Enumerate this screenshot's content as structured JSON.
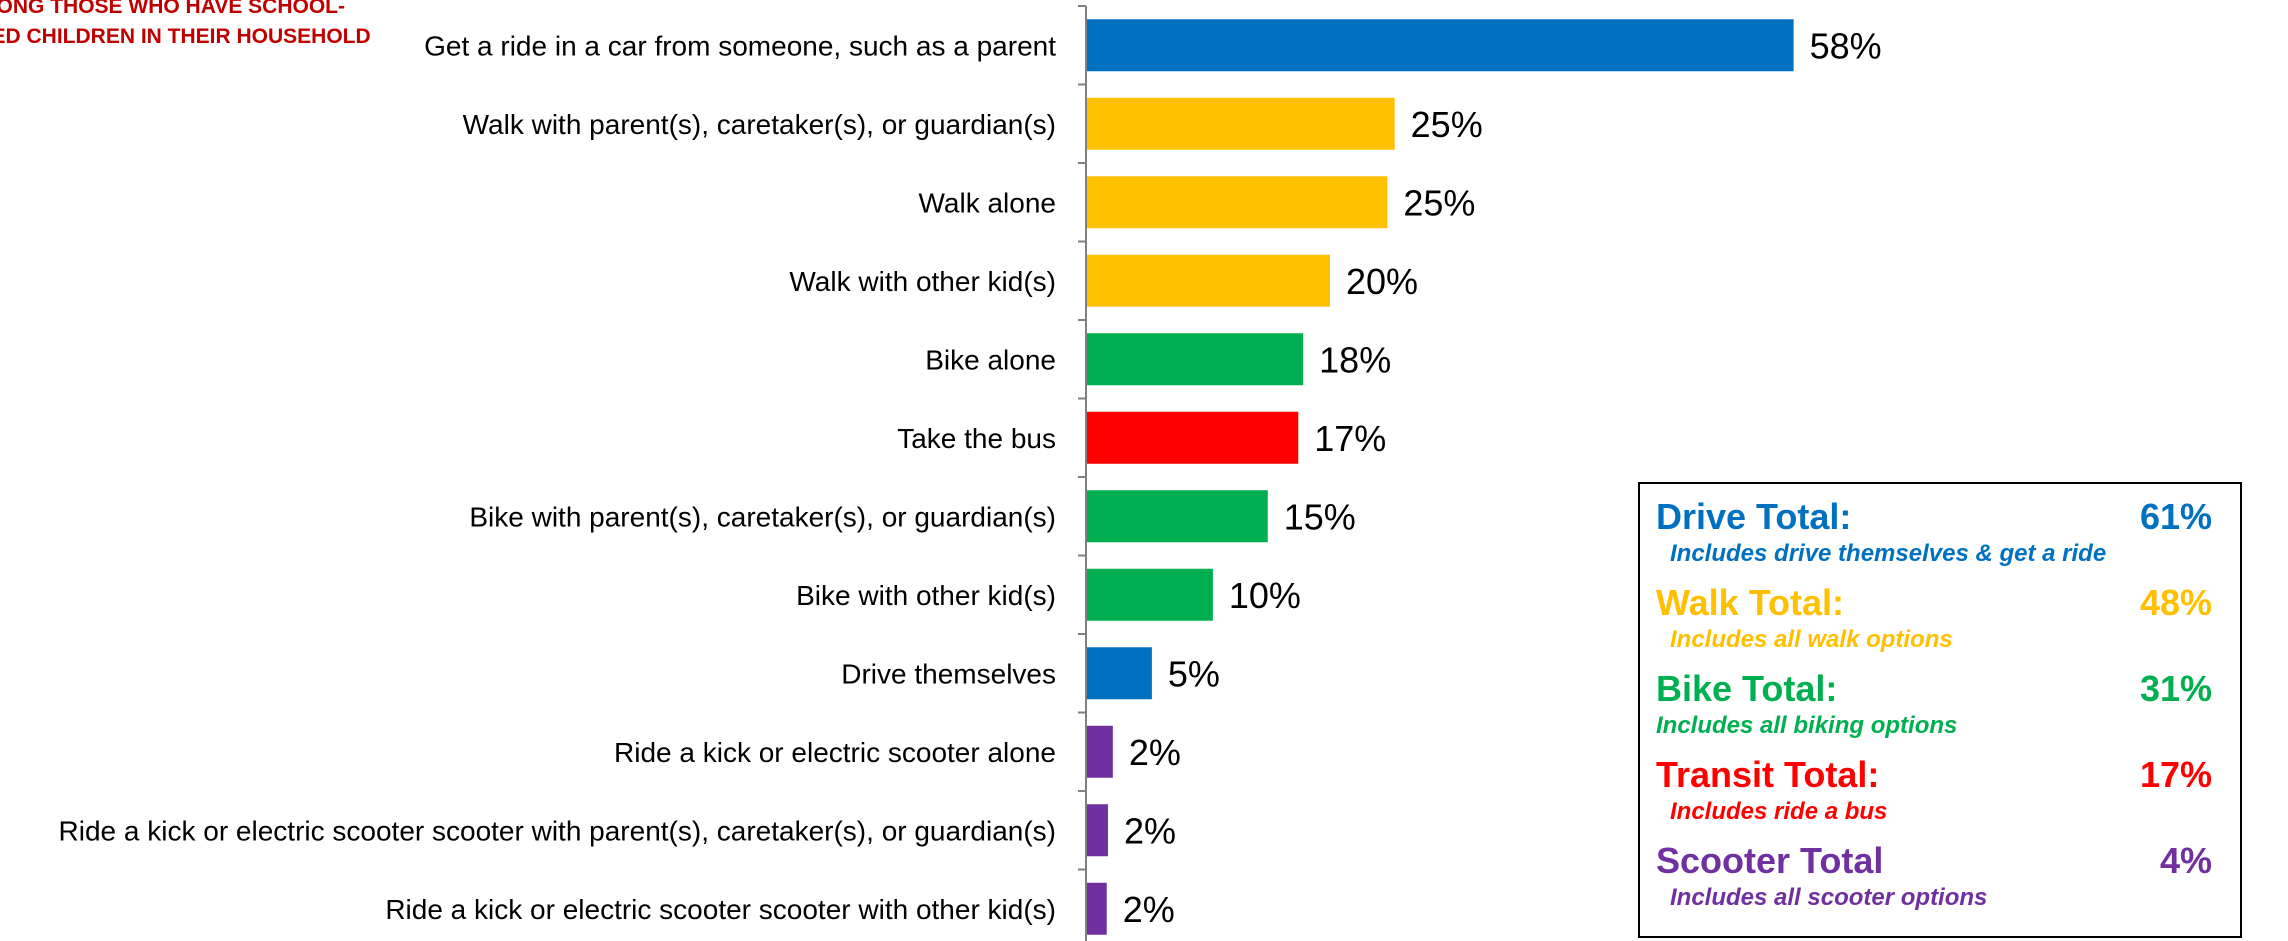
{
  "header": {
    "line1": "AMONG THOSE WHO HAVE SCHOOL-",
    "line2": "AGED CHILDREN IN THEIR HOUSEHOLD"
  },
  "colors": {
    "drive": "#0070C0",
    "walk": "#FFC000",
    "bike": "#00B050",
    "transit": "#FF0000",
    "scooter": "#7030A0",
    "header": "#C00000",
    "axis": "#808080"
  },
  "chart_data": {
    "type": "bar",
    "orientation": "horizontal",
    "categories": [
      "Get a ride in a car from someone, such as a parent",
      "Walk with parent(s), caretaker(s), or guardian(s)",
      "Walk alone",
      "Walk with other kid(s)",
      "Bike alone",
      "Take the bus",
      "Bike with parent(s), caretaker(s), or guardian(s)",
      "Bike with other kid(s)",
      "Drive themselves",
      "Ride a kick or electric scooter alone",
      "Ride a kick or electric scooter scooter with parent(s), caretaker(s), or guardian(s)",
      "Ride a kick or electric scooter scooter with other kid(s)"
    ],
    "values": [
      58,
      25.3,
      24.7,
      20,
      17.8,
      17.4,
      14.9,
      10.4,
      5.4,
      2.2,
      1.8,
      1.7
    ],
    "value_labels": [
      "58%",
      "25%",
      "25%",
      "20%",
      "18%",
      "17%",
      "15%",
      "10%",
      "5%",
      "2%",
      "2%",
      "2%"
    ],
    "bar_groups": [
      "drive",
      "walk",
      "walk",
      "walk",
      "bike",
      "transit",
      "bike",
      "bike",
      "drive",
      "scooter",
      "scooter",
      "scooter"
    ],
    "xlim": [
      0,
      100
    ],
    "grid": false,
    "legend": "none"
  },
  "totals_box": [
    {
      "key": "drive",
      "label": "Drive Total:",
      "value": "61%",
      "note": "Includes drive themselves & get a ride"
    },
    {
      "key": "walk",
      "label": "Walk Total:",
      "value": "48%",
      "note": "Includes all walk options"
    },
    {
      "key": "bike",
      "label": "Bike Total:",
      "value": "31%",
      "note": "Includes all biking options"
    },
    {
      "key": "transit",
      "label": "Transit Total:",
      "value": "17%",
      "note": "Includes ride a bus"
    },
    {
      "key": "scooter",
      "label": "Scooter Total",
      "value": "4%",
      "note": "Includes all scooter options"
    }
  ]
}
